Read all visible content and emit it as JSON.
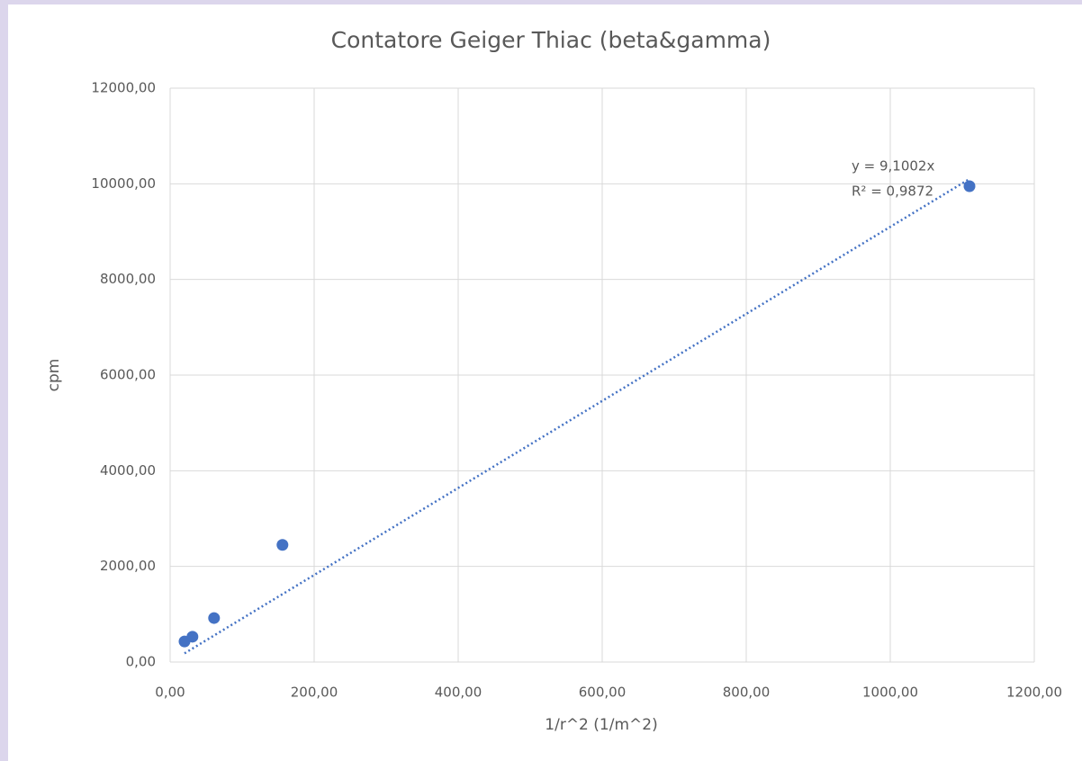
{
  "chart_data": {
    "type": "scatter",
    "title": "Contatore Geiger Thiac (beta&gamma)",
    "x_label": "1/r^2 (1/m^2)",
    "y_label": "cpm",
    "series": [
      {
        "name": "cpm",
        "color": "#4472c4",
        "x": [
          20,
          31,
          61,
          156,
          1110
        ],
        "values": [
          430,
          530,
          920,
          2450,
          9950
        ]
      }
    ],
    "trendline": {
      "slope": 9.1002,
      "equation": "y = 9,1002x",
      "r_squared": "R² = 0,9872",
      "color": "#4472c4"
    },
    "xlim": [
      0,
      1200
    ],
    "ylim": [
      0,
      12000
    ],
    "xticks": [
      {
        "value": 0,
        "label": "0,00"
      },
      {
        "value": 200,
        "label": "200,00"
      },
      {
        "value": 400,
        "label": "400,00"
      },
      {
        "value": 600,
        "label": "600,00"
      },
      {
        "value": 800,
        "label": "800,00"
      },
      {
        "value": 1000,
        "label": "1000,00"
      },
      {
        "value": 1200,
        "label": "1200,00"
      }
    ],
    "yticks": [
      {
        "value": 0,
        "label": "0,00"
      },
      {
        "value": 2000,
        "label": "2000,00"
      },
      {
        "value": 4000,
        "label": "4000,00"
      },
      {
        "value": 6000,
        "label": "6000,00"
      },
      {
        "value": 8000,
        "label": "8000,00"
      },
      {
        "value": 10000,
        "label": "10000,00"
      },
      {
        "value": 12000,
        "label": "12000,00"
      }
    ],
    "grid": true
  }
}
